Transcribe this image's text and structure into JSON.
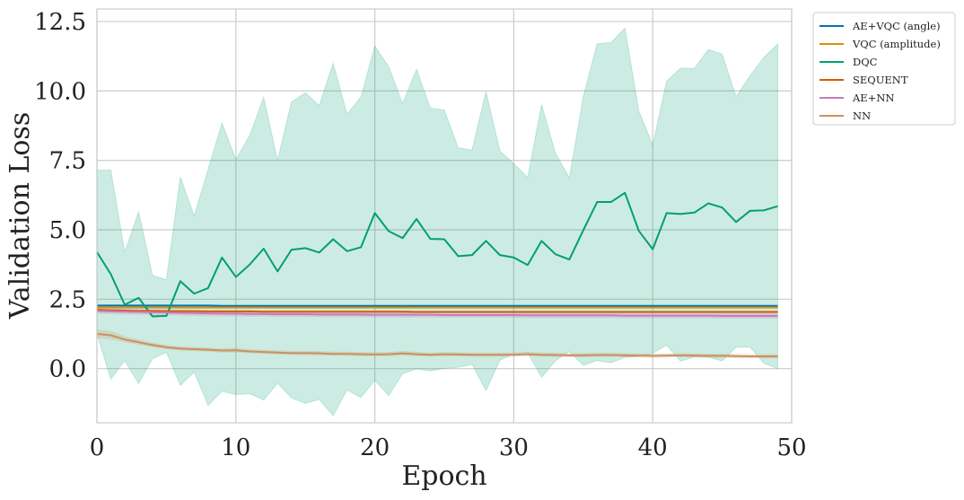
{
  "chart_data": {
    "type": "line",
    "xlabel": "Epoch",
    "ylabel": "Validation Loss",
    "xlim": [
      0,
      50
    ],
    "ylim": [
      -1.95,
      12.95
    ],
    "xticks": [
      0,
      10,
      20,
      30,
      40,
      50
    ],
    "xtick_labels": [
      "0",
      "10",
      "20",
      "30",
      "40",
      "50"
    ],
    "yticks": [
      0.0,
      2.5,
      5.0,
      7.5,
      10.0,
      12.5
    ],
    "ytick_labels": [
      "0.0",
      "2.5",
      "5.0",
      "7.5",
      "10.0",
      "12.5"
    ],
    "grid": true,
    "legend_placement": "outside-top-right",
    "x": [
      0,
      1,
      2,
      3,
      4,
      5,
      6,
      7,
      8,
      9,
      10,
      11,
      12,
      13,
      14,
      15,
      16,
      17,
      18,
      19,
      20,
      21,
      22,
      23,
      24,
      25,
      26,
      27,
      28,
      29,
      30,
      31,
      32,
      33,
      34,
      35,
      36,
      37,
      38,
      39,
      40,
      41,
      42,
      43,
      44,
      45,
      46,
      47,
      48,
      49
    ],
    "series": [
      {
        "name": "AE+VQC (angle)",
        "color": "#0173b2",
        "values": [
          2.27,
          2.27,
          2.27,
          2.27,
          2.27,
          2.27,
          2.27,
          2.27,
          2.27,
          2.26,
          2.26,
          2.26,
          2.26,
          2.26,
          2.26,
          2.26,
          2.26,
          2.26,
          2.26,
          2.26,
          2.26,
          2.26,
          2.26,
          2.26,
          2.26,
          2.26,
          2.26,
          2.26,
          2.26,
          2.26,
          2.26,
          2.26,
          2.26,
          2.26,
          2.26,
          2.26,
          2.26,
          2.26,
          2.26,
          2.26,
          2.26,
          2.26,
          2.26,
          2.26,
          2.26,
          2.26,
          2.26,
          2.26,
          2.26,
          2.26
        ],
        "band_lower": [
          2.24,
          2.24,
          2.24,
          2.24,
          2.24,
          2.24,
          2.24,
          2.24,
          2.24,
          2.23,
          2.23,
          2.23,
          2.23,
          2.23,
          2.23,
          2.23,
          2.23,
          2.23,
          2.23,
          2.23,
          2.23,
          2.23,
          2.23,
          2.23,
          2.23,
          2.23,
          2.23,
          2.23,
          2.23,
          2.23,
          2.23,
          2.23,
          2.23,
          2.23,
          2.23,
          2.23,
          2.23,
          2.23,
          2.23,
          2.23,
          2.23,
          2.23,
          2.23,
          2.23,
          2.23,
          2.23,
          2.23,
          2.23,
          2.23,
          2.23
        ],
        "band_upper": [
          2.3,
          2.3,
          2.3,
          2.3,
          2.3,
          2.3,
          2.3,
          2.3,
          2.3,
          2.29,
          2.29,
          2.29,
          2.29,
          2.29,
          2.29,
          2.29,
          2.29,
          2.29,
          2.29,
          2.29,
          2.29,
          2.29,
          2.29,
          2.29,
          2.29,
          2.29,
          2.29,
          2.29,
          2.29,
          2.29,
          2.29,
          2.29,
          2.29,
          2.29,
          2.29,
          2.29,
          2.29,
          2.29,
          2.29,
          2.29,
          2.29,
          2.29,
          2.29,
          2.29,
          2.29,
          2.29,
          2.29,
          2.29,
          2.29,
          2.29
        ]
      },
      {
        "name": "VQC (amplitude)",
        "color": "#de8f05",
        "values": [
          2.2,
          2.2,
          2.2,
          2.2,
          2.2,
          2.2,
          2.2,
          2.2,
          2.2,
          2.2,
          2.2,
          2.2,
          2.2,
          2.2,
          2.2,
          2.2,
          2.2,
          2.2,
          2.2,
          2.2,
          2.2,
          2.2,
          2.2,
          2.2,
          2.2,
          2.2,
          2.2,
          2.2,
          2.2,
          2.2,
          2.2,
          2.2,
          2.2,
          2.2,
          2.2,
          2.2,
          2.2,
          2.2,
          2.2,
          2.2,
          2.2,
          2.2,
          2.2,
          2.2,
          2.2,
          2.2,
          2.2,
          2.2,
          2.2,
          2.2
        ],
        "band_lower": [
          2.17,
          2.17,
          2.17,
          2.17,
          2.17,
          2.17,
          2.17,
          2.17,
          2.17,
          2.17,
          2.17,
          2.17,
          2.17,
          2.17,
          2.17,
          2.17,
          2.17,
          2.17,
          2.17,
          2.17,
          2.17,
          2.17,
          2.17,
          2.17,
          2.17,
          2.17,
          2.17,
          2.17,
          2.17,
          2.17,
          2.17,
          2.17,
          2.17,
          2.17,
          2.17,
          2.17,
          2.17,
          2.17,
          2.17,
          2.17,
          2.17,
          2.17,
          2.17,
          2.17,
          2.17,
          2.17,
          2.17,
          2.17,
          2.17,
          2.17
        ],
        "band_upper": [
          2.23,
          2.23,
          2.23,
          2.23,
          2.23,
          2.23,
          2.23,
          2.23,
          2.23,
          2.23,
          2.23,
          2.23,
          2.23,
          2.23,
          2.23,
          2.23,
          2.23,
          2.23,
          2.23,
          2.23,
          2.23,
          2.23,
          2.23,
          2.23,
          2.23,
          2.23,
          2.23,
          2.23,
          2.23,
          2.23,
          2.23,
          2.23,
          2.23,
          2.23,
          2.23,
          2.23,
          2.23,
          2.23,
          2.23,
          2.23,
          2.23,
          2.23,
          2.23,
          2.23,
          2.23,
          2.23,
          2.23,
          2.23,
          2.23,
          2.23
        ]
      },
      {
        "name": "DQC",
        "color": "#029e73",
        "values": [
          4.2,
          3.4,
          2.3,
          2.55,
          1.88,
          1.9,
          3.15,
          2.7,
          2.9,
          4.0,
          3.3,
          3.75,
          4.32,
          3.5,
          4.28,
          4.34,
          4.18,
          4.66,
          4.23,
          4.37,
          5.6,
          4.95,
          4.7,
          5.39,
          4.67,
          4.66,
          4.05,
          4.09,
          4.6,
          4.09,
          4.0,
          3.73,
          4.6,
          4.12,
          3.93,
          4.98,
          6.0,
          6.0,
          6.33,
          4.96,
          4.3,
          5.6,
          5.57,
          5.62,
          5.95,
          5.8,
          5.28,
          5.68,
          5.7,
          5.85
        ],
        "band_lower": [
          1.25,
          -0.38,
          0.28,
          -0.54,
          0.36,
          0.59,
          -0.6,
          -0.12,
          -1.32,
          -0.82,
          -0.93,
          -0.9,
          -1.13,
          -0.52,
          -1.05,
          -1.25,
          -1.11,
          -1.69,
          -0.77,
          -1.04,
          -0.42,
          -0.97,
          -0.18,
          -0.01,
          -0.08,
          0.01,
          0.05,
          0.15,
          -0.79,
          0.3,
          0.54,
          0.58,
          -0.31,
          0.28,
          0.62,
          0.12,
          0.29,
          0.21,
          0.4,
          0.44,
          0.55,
          0.85,
          0.27,
          0.43,
          0.41,
          0.28,
          0.77,
          0.78,
          0.19,
          0.0
        ],
        "band_upper": [
          7.15,
          7.15,
          4.2,
          5.65,
          3.36,
          3.2,
          6.9,
          5.5,
          7.17,
          8.84,
          7.53,
          8.4,
          9.77,
          7.5,
          9.6,
          9.93,
          9.47,
          11.0,
          9.16,
          9.78,
          11.62,
          10.87,
          9.54,
          10.78,
          9.38,
          9.31,
          7.95,
          7.87,
          9.98,
          7.84,
          7.38,
          6.88,
          9.51,
          7.76,
          6.87,
          9.78,
          11.7,
          11.74,
          12.26,
          9.28,
          8.05,
          10.35,
          10.82,
          10.81,
          11.49,
          11.32,
          9.79,
          10.55,
          11.21,
          11.69
        ]
      },
      {
        "name": "SEQUENT",
        "color": "#d55e00",
        "values": [
          2.12,
          2.1,
          2.09,
          2.08,
          2.08,
          2.07,
          2.07,
          2.07,
          2.06,
          2.06,
          2.06,
          2.06,
          2.05,
          2.05,
          2.05,
          2.05,
          2.05,
          2.05,
          2.05,
          2.05,
          2.05,
          2.05,
          2.05,
          2.04,
          2.04,
          2.04,
          2.04,
          2.04,
          2.04,
          2.04,
          2.04,
          2.04,
          2.04,
          2.04,
          2.04,
          2.04,
          2.04,
          2.04,
          2.04,
          2.04,
          2.04,
          2.04,
          2.04,
          2.04,
          2.04,
          2.04,
          2.04,
          2.04,
          2.04,
          2.04
        ],
        "band_lower": [
          2.08,
          2.06,
          2.05,
          2.04,
          2.04,
          2.03,
          2.03,
          2.03,
          2.02,
          2.02,
          2.02,
          2.02,
          2.01,
          2.01,
          2.01,
          2.01,
          2.01,
          2.01,
          2.01,
          2.01,
          2.01,
          2.01,
          2.01,
          2.0,
          2.0,
          2.0,
          2.0,
          2.0,
          2.0,
          2.0,
          2.0,
          2.0,
          2.0,
          2.0,
          2.0,
          2.0,
          2.0,
          2.0,
          2.0,
          2.0,
          2.0,
          2.0,
          2.0,
          2.0,
          2.0,
          2.0,
          2.0,
          2.0,
          2.0,
          2.0
        ],
        "band_upper": [
          2.16,
          2.14,
          2.13,
          2.12,
          2.12,
          2.11,
          2.11,
          2.11,
          2.1,
          2.1,
          2.1,
          2.1,
          2.09,
          2.09,
          2.09,
          2.09,
          2.09,
          2.09,
          2.09,
          2.09,
          2.09,
          2.09,
          2.09,
          2.08,
          2.08,
          2.08,
          2.08,
          2.08,
          2.08,
          2.08,
          2.08,
          2.08,
          2.08,
          2.08,
          2.08,
          2.08,
          2.08,
          2.08,
          2.08,
          2.08,
          2.08,
          2.08,
          2.08,
          2.08,
          2.08,
          2.08,
          2.08,
          2.08,
          2.08,
          2.08
        ]
      },
      {
        "name": "AE+NN",
        "color": "#cc78bc",
        "values": [
          2.08,
          2.06,
          2.05,
          2.04,
          2.03,
          2.02,
          2.01,
          2.0,
          1.99,
          1.98,
          1.98,
          1.97,
          1.97,
          1.96,
          1.96,
          1.96,
          1.95,
          1.95,
          1.95,
          1.95,
          1.94,
          1.94,
          1.94,
          1.94,
          1.94,
          1.93,
          1.93,
          1.93,
          1.93,
          1.93,
          1.93,
          1.92,
          1.92,
          1.92,
          1.92,
          1.92,
          1.92,
          1.92,
          1.91,
          1.91,
          1.91,
          1.91,
          1.91,
          1.91,
          1.91,
          1.9,
          1.9,
          1.9,
          1.9,
          1.9
        ],
        "band_lower": [
          1.98,
          1.96,
          1.95,
          1.94,
          1.93,
          1.92,
          1.91,
          1.9,
          1.89,
          1.88,
          1.88,
          1.87,
          1.87,
          1.86,
          1.86,
          1.86,
          1.85,
          1.85,
          1.85,
          1.85,
          1.84,
          1.84,
          1.84,
          1.84,
          1.84,
          1.83,
          1.83,
          1.83,
          1.83,
          1.83,
          1.83,
          1.82,
          1.82,
          1.82,
          1.82,
          1.82,
          1.82,
          1.82,
          1.81,
          1.81,
          1.81,
          1.81,
          1.81,
          1.81,
          1.81,
          1.8,
          1.8,
          1.8,
          1.8,
          1.8
        ],
        "band_upper": [
          2.18,
          2.16,
          2.15,
          2.14,
          2.13,
          2.12,
          2.11,
          2.1,
          2.09,
          2.08,
          2.08,
          2.07,
          2.07,
          2.06,
          2.06,
          2.06,
          2.05,
          2.05,
          2.05,
          2.05,
          2.04,
          2.04,
          2.04,
          2.04,
          2.04,
          2.03,
          2.03,
          2.03,
          2.03,
          2.03,
          2.03,
          2.02,
          2.02,
          2.02,
          2.02,
          2.02,
          2.02,
          2.02,
          2.01,
          2.01,
          2.01,
          2.01,
          2.01,
          2.01,
          2.01,
          2.0,
          2.0,
          2.0,
          2.0,
          2.0
        ]
      },
      {
        "name": "NN",
        "color": "#ca9161",
        "values": [
          1.25,
          1.2,
          1.05,
          0.95,
          0.85,
          0.77,
          0.72,
          0.7,
          0.68,
          0.65,
          0.66,
          0.62,
          0.6,
          0.58,
          0.56,
          0.56,
          0.55,
          0.53,
          0.53,
          0.52,
          0.51,
          0.52,
          0.55,
          0.52,
          0.5,
          0.52,
          0.51,
          0.5,
          0.5,
          0.5,
          0.5,
          0.52,
          0.5,
          0.49,
          0.48,
          0.48,
          0.49,
          0.49,
          0.48,
          0.47,
          0.46,
          0.47,
          0.48,
          0.47,
          0.46,
          0.46,
          0.45,
          0.44,
          0.44,
          0.44
        ],
        "band_lower": [
          1.1,
          1.05,
          0.95,
          0.86,
          0.77,
          0.7,
          0.65,
          0.63,
          0.61,
          0.58,
          0.58,
          0.55,
          0.53,
          0.51,
          0.49,
          0.49,
          0.48,
          0.46,
          0.46,
          0.45,
          0.44,
          0.45,
          0.47,
          0.45,
          0.43,
          0.45,
          0.44,
          0.43,
          0.43,
          0.43,
          0.43,
          0.45,
          0.43,
          0.42,
          0.41,
          0.41,
          0.42,
          0.42,
          0.41,
          0.4,
          0.39,
          0.4,
          0.41,
          0.4,
          0.39,
          0.39,
          0.38,
          0.37,
          0.37,
          0.37
        ],
        "band_upper": [
          1.4,
          1.36,
          1.16,
          1.05,
          0.94,
          0.85,
          0.8,
          0.78,
          0.76,
          0.73,
          0.75,
          0.7,
          0.68,
          0.66,
          0.64,
          0.64,
          0.63,
          0.61,
          0.61,
          0.6,
          0.59,
          0.6,
          0.64,
          0.6,
          0.58,
          0.6,
          0.59,
          0.58,
          0.58,
          0.58,
          0.58,
          0.6,
          0.58,
          0.57,
          0.56,
          0.56,
          0.57,
          0.57,
          0.56,
          0.55,
          0.54,
          0.55,
          0.56,
          0.55,
          0.54,
          0.54,
          0.53,
          0.52,
          0.52,
          0.52
        ]
      }
    ]
  }
}
